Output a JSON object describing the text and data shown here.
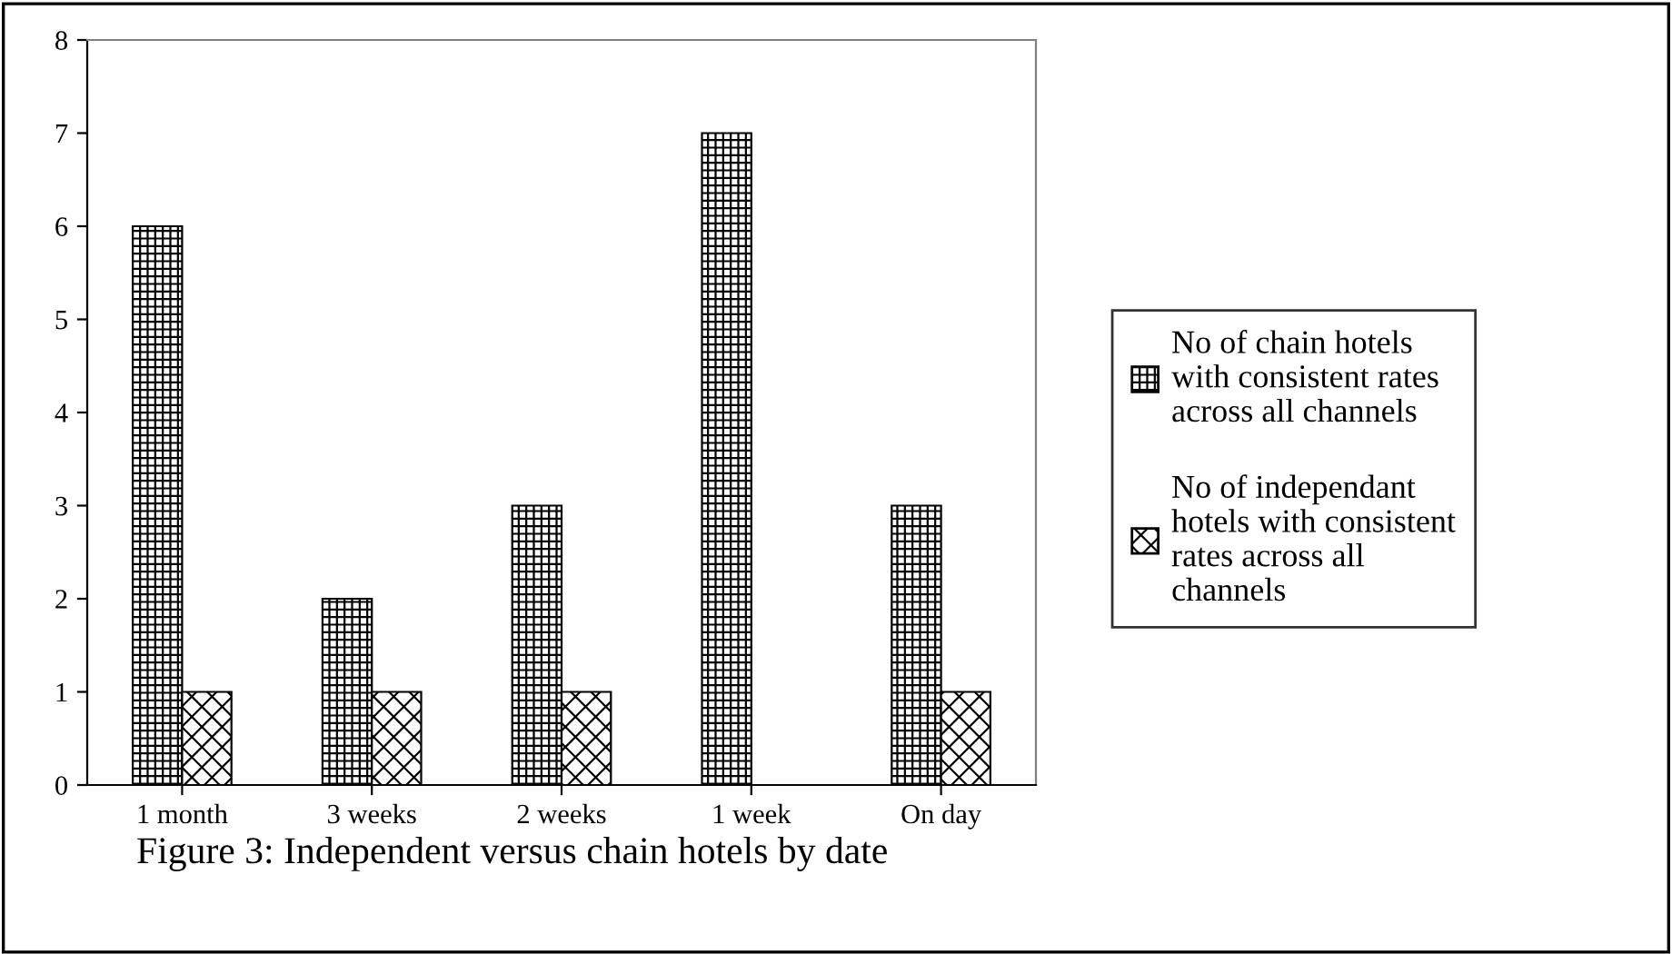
{
  "chart_data": {
    "type": "bar",
    "categories": [
      "1 month",
      "3 weeks",
      "2 weeks",
      "1 week",
      "On day"
    ],
    "series": [
      {
        "name": "No of chain hotels with consistent rates across all channels",
        "color": "#000000",
        "values": [
          6,
          2,
          3,
          7,
          3
        ]
      },
      {
        "name": "No of independant hotels with consistent rates across all channels",
        "color": "#000000",
        "values": [
          1,
          1,
          1,
          0,
          1
        ]
      }
    ],
    "ylim": [
      0,
      8
    ],
    "yticks": [
      0,
      1,
      2,
      3,
      4,
      5,
      6,
      7,
      8
    ],
    "grid": false,
    "legend": "right",
    "annotations": [
      "Figure 3: Independent versus chain hotels by date"
    ]
  }
}
